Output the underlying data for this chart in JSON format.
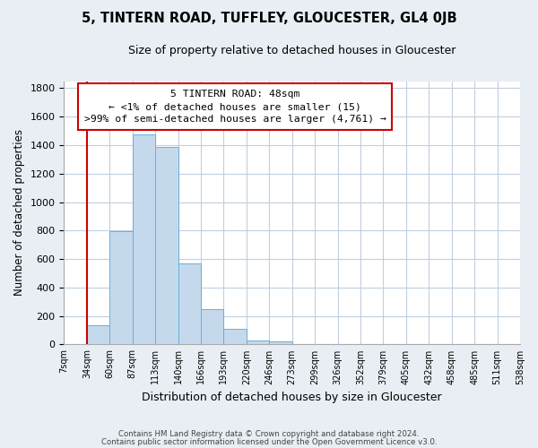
{
  "title": "5, TINTERN ROAD, TUFFLEY, GLOUCESTER, GL4 0JB",
  "subtitle": "Size of property relative to detached houses in Gloucester",
  "xlabel": "Distribution of detached houses by size in Gloucester",
  "ylabel": "Number of detached properties",
  "bar_values": [
    0,
    135,
    795,
    1475,
    1390,
    570,
    250,
    110,
    30,
    20,
    0,
    0,
    0,
    0,
    0,
    0,
    0,
    0,
    0,
    0
  ],
  "bin_labels": [
    "7sqm",
    "34sqm",
    "60sqm",
    "87sqm",
    "113sqm",
    "140sqm",
    "166sqm",
    "193sqm",
    "220sqm",
    "246sqm",
    "273sqm",
    "299sqm",
    "326sqm",
    "352sqm",
    "379sqm",
    "405sqm",
    "432sqm",
    "458sqm",
    "485sqm",
    "511sqm",
    "538sqm"
  ],
  "bar_color": "#c5d9ed",
  "bar_edge_color": "#6aafd6",
  "vline_x": 1,
  "vline_color": "#cc0000",
  "annotation_title": "5 TINTERN ROAD: 48sqm",
  "annotation_line1": "← <1% of detached houses are smaller (15)",
  "annotation_line2": ">99% of semi-detached houses are larger (4,761) →",
  "annotation_box_color": "#cc0000",
  "ylim": [
    0,
    1850
  ],
  "yticks": [
    0,
    200,
    400,
    600,
    800,
    1000,
    1200,
    1400,
    1600,
    1800
  ],
  "footer1": "Contains HM Land Registry data © Crown copyright and database right 2024.",
  "footer2": "Contains public sector information licensed under the Open Government Licence v3.0.",
  "background_color": "#e8eef4",
  "plot_background": "#ffffff",
  "grid_color": "#c0cfdf"
}
